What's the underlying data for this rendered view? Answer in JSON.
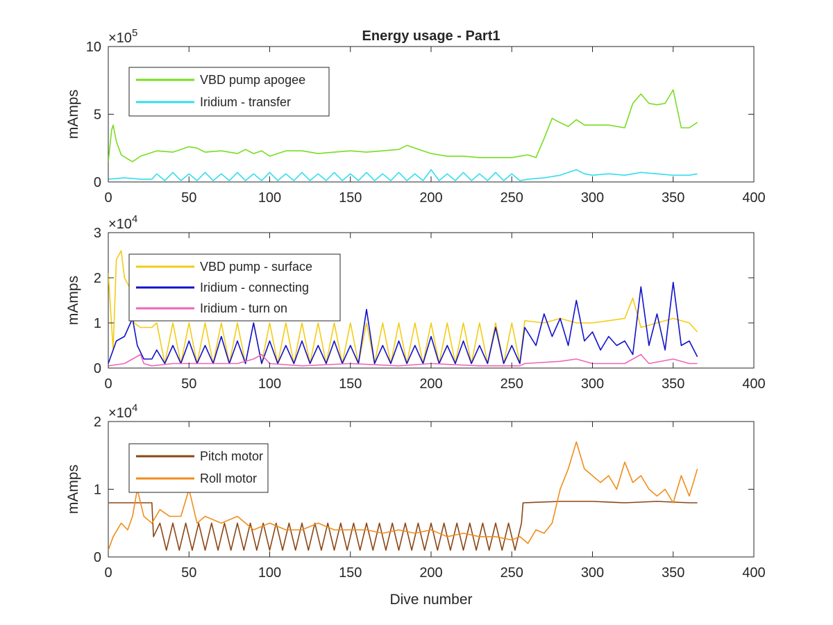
{
  "figure": {
    "title": "Energy usage - Part1",
    "xlabel": "Dive number"
  },
  "chart_data": [
    {
      "type": "line",
      "title": "Energy usage - Part1",
      "xlabel": "",
      "ylabel": "mAmps",
      "exponent_label": "×10",
      "exponent_power": "5",
      "xlim": [
        0,
        400
      ],
      "ylim": [
        0,
        10
      ],
      "x_ticks": [
        "0",
        "50",
        "100",
        "150",
        "200",
        "250",
        "300",
        "350",
        "400"
      ],
      "y_ticks": [
        "0",
        "5",
        "10"
      ],
      "legend_position": "top-left",
      "series": [
        {
          "name": "VBD pump apogee",
          "color": "#77dd22",
          "x": [
            0,
            2,
            3,
            5,
            8,
            12,
            15,
            20,
            30,
            40,
            50,
            55,
            60,
            70,
            80,
            85,
            90,
            95,
            100,
            110,
            120,
            130,
            140,
            150,
            160,
            170,
            180,
            185,
            190,
            195,
            200,
            210,
            220,
            230,
            240,
            250,
            255,
            260,
            265,
            270,
            275,
            278,
            285,
            290,
            295,
            300,
            310,
            320,
            325,
            330,
            335,
            340,
            345,
            350,
            355,
            360,
            365
          ],
          "y": [
            1.5,
            3.8,
            4.2,
            3.0,
            2.0,
            1.7,
            1.5,
            1.9,
            2.3,
            2.2,
            2.6,
            2.5,
            2.2,
            2.3,
            2.1,
            2.4,
            2.1,
            2.3,
            1.9,
            2.3,
            2.3,
            2.1,
            2.2,
            2.3,
            2.2,
            2.3,
            2.4,
            2.7,
            2.5,
            2.3,
            2.1,
            1.9,
            1.9,
            1.8,
            1.8,
            1.8,
            1.9,
            2.0,
            1.8,
            3.2,
            4.7,
            4.5,
            4.1,
            4.6,
            4.2,
            4.2,
            4.2,
            4.0,
            5.8,
            6.5,
            5.8,
            5.7,
            5.8,
            6.8,
            4.0,
            4.0,
            4.4
          ]
        },
        {
          "name": "Iridium - transfer",
          "color": "#33ddee",
          "x": [
            0,
            10,
            20,
            27,
            30,
            35,
            40,
            45,
            50,
            55,
            60,
            65,
            70,
            75,
            80,
            85,
            90,
            95,
            100,
            105,
            110,
            115,
            120,
            125,
            130,
            135,
            140,
            145,
            150,
            155,
            160,
            165,
            170,
            175,
            180,
            185,
            190,
            195,
            200,
            205,
            210,
            215,
            220,
            225,
            230,
            235,
            240,
            245,
            250,
            255,
            260,
            270,
            280,
            285,
            290,
            295,
            300,
            310,
            320,
            330,
            340,
            350,
            360,
            365
          ],
          "y": [
            0.2,
            0.3,
            0.2,
            0.2,
            0.6,
            0.1,
            0.7,
            0.1,
            0.6,
            0.1,
            0.7,
            0.1,
            0.6,
            0.1,
            0.7,
            0.1,
            0.6,
            0.1,
            0.7,
            0.1,
            0.6,
            0.1,
            0.7,
            0.1,
            0.6,
            0.1,
            0.7,
            0.1,
            0.6,
            0.1,
            0.7,
            0.1,
            0.6,
            0.1,
            0.7,
            0.1,
            0.6,
            0.1,
            0.9,
            0.1,
            0.6,
            0.1,
            0.7,
            0.1,
            0.6,
            0.1,
            0.7,
            0.1,
            0.6,
            0.1,
            0.2,
            0.3,
            0.5,
            0.7,
            0.9,
            0.6,
            0.5,
            0.6,
            0.5,
            0.7,
            0.6,
            0.5,
            0.5,
            0.6
          ]
        }
      ]
    },
    {
      "type": "line",
      "title": "",
      "xlabel": "",
      "ylabel": "mAmps",
      "exponent_label": "×10",
      "exponent_power": "4",
      "xlim": [
        0,
        400
      ],
      "ylim": [
        0,
        3
      ],
      "x_ticks": [
        "0",
        "50",
        "100",
        "150",
        "200",
        "250",
        "300",
        "350",
        "400"
      ],
      "y_ticks": [
        "0",
        "1",
        "2",
        "3"
      ],
      "legend_position": "top-left",
      "series": [
        {
          "name": "VBD pump - surface",
          "color": "#f2cc15",
          "x": [
            0,
            3,
            5,
            8,
            10,
            13,
            16,
            20,
            27,
            30,
            35,
            40,
            45,
            50,
            55,
            60,
            65,
            70,
            75,
            80,
            85,
            90,
            95,
            100,
            105,
            110,
            115,
            120,
            125,
            130,
            135,
            140,
            145,
            150,
            155,
            160,
            165,
            170,
            175,
            180,
            185,
            190,
            195,
            200,
            205,
            210,
            215,
            220,
            225,
            230,
            235,
            240,
            245,
            250,
            255,
            258,
            270,
            280,
            290,
            300,
            310,
            320,
            325,
            330,
            340,
            350,
            360,
            365
          ],
          "y": [
            2.1,
            0.4,
            2.4,
            2.6,
            2.0,
            1.8,
            1.0,
            0.9,
            0.9,
            1.0,
            0.1,
            1.0,
            0.1,
            1.0,
            0.1,
            1.0,
            0.1,
            1.0,
            0.1,
            1.0,
            0.1,
            1.0,
            0.1,
            1.0,
            0.1,
            1.0,
            0.1,
            1.0,
            0.1,
            1.0,
            0.1,
            1.0,
            0.1,
            1.0,
            0.1,
            1.0,
            0.1,
            1.0,
            0.1,
            1.0,
            0.1,
            1.0,
            0.1,
            1.0,
            0.1,
            1.0,
            0.1,
            1.0,
            0.1,
            1.0,
            0.1,
            1.0,
            0.1,
            1.0,
            0.1,
            1.05,
            1.0,
            1.1,
            1.0,
            1.0,
            1.05,
            1.1,
            1.55,
            0.9,
            1.0,
            1.1,
            1.0,
            0.8
          ]
        },
        {
          "name": "Iridium - connecting",
          "color": "#1111cc",
          "x": [
            0,
            5,
            10,
            15,
            18,
            22,
            27,
            30,
            35,
            40,
            45,
            50,
            55,
            60,
            65,
            70,
            75,
            80,
            85,
            90,
            95,
            100,
            105,
            110,
            115,
            120,
            125,
            130,
            135,
            140,
            145,
            150,
            155,
            160,
            165,
            170,
            175,
            180,
            185,
            190,
            195,
            200,
            205,
            210,
            215,
            220,
            225,
            230,
            235,
            240,
            245,
            250,
            255,
            258,
            265,
            270,
            275,
            280,
            285,
            290,
            295,
            300,
            305,
            310,
            315,
            320,
            325,
            330,
            335,
            340,
            345,
            350,
            355,
            360,
            365
          ],
          "y": [
            0.1,
            0.6,
            0.7,
            1.1,
            0.5,
            0.2,
            0.2,
            0.4,
            0.1,
            0.5,
            0.1,
            0.6,
            0.1,
            0.5,
            0.1,
            0.7,
            0.1,
            0.6,
            0.1,
            1.0,
            0.1,
            0.6,
            0.1,
            0.5,
            0.1,
            0.6,
            0.1,
            0.5,
            0.1,
            0.6,
            0.1,
            0.5,
            0.1,
            1.3,
            0.1,
            0.5,
            0.1,
            0.6,
            0.1,
            0.5,
            0.1,
            0.7,
            0.1,
            0.5,
            0.1,
            0.6,
            0.1,
            0.5,
            0.1,
            0.9,
            0.1,
            0.5,
            0.1,
            0.9,
            0.5,
            1.2,
            0.7,
            1.1,
            0.5,
            1.5,
            0.6,
            0.8,
            0.4,
            0.7,
            0.5,
            0.6,
            0.3,
            1.8,
            0.5,
            1.2,
            0.4,
            1.9,
            0.5,
            0.6,
            0.25
          ]
        },
        {
          "name": "Iridium - turn on",
          "color": "#ee66bb",
          "x": [
            0,
            10,
            20,
            22,
            27,
            40,
            60,
            80,
            90,
            95,
            100,
            120,
            150,
            180,
            200,
            230,
            255,
            258,
            280,
            290,
            300,
            320,
            330,
            335,
            350,
            360,
            365
          ],
          "y": [
            0.05,
            0.1,
            0.3,
            0.1,
            0.05,
            0.1,
            0.1,
            0.1,
            0.2,
            0.3,
            0.1,
            0.05,
            0.1,
            0.05,
            0.1,
            0.05,
            0.05,
            0.1,
            0.15,
            0.2,
            0.1,
            0.1,
            0.3,
            0.1,
            0.2,
            0.1,
            0.1
          ]
        }
      ]
    },
    {
      "type": "line",
      "title": "",
      "xlabel": "Dive number",
      "ylabel": "mAmps",
      "exponent_label": "×10",
      "exponent_power": "4",
      "xlim": [
        0,
        400
      ],
      "ylim": [
        0,
        2
      ],
      "x_ticks": [
        "0",
        "50",
        "100",
        "150",
        "200",
        "250",
        "300",
        "350",
        "400"
      ],
      "y_ticks": [
        "0",
        "1",
        "2"
      ],
      "legend_position": "top-left",
      "series": [
        {
          "name": "Pitch motor",
          "color": "#8b4513",
          "x": [
            0,
            27,
            28,
            32,
            36,
            40,
            44,
            48,
            52,
            56,
            60,
            64,
            68,
            72,
            76,
            80,
            84,
            88,
            92,
            96,
            100,
            104,
            108,
            112,
            116,
            120,
            124,
            128,
            132,
            136,
            140,
            144,
            148,
            152,
            156,
            160,
            164,
            168,
            172,
            176,
            180,
            184,
            188,
            192,
            196,
            200,
            204,
            208,
            212,
            216,
            220,
            224,
            228,
            232,
            236,
            240,
            244,
            248,
            252,
            256,
            257,
            280,
            300,
            320,
            340,
            360,
            365
          ],
          "y": [
            0.8,
            0.8,
            0.3,
            0.5,
            0.1,
            0.5,
            0.1,
            0.5,
            0.1,
            0.5,
            0.1,
            0.5,
            0.1,
            0.5,
            0.1,
            0.5,
            0.1,
            0.5,
            0.1,
            0.5,
            0.1,
            0.5,
            0.1,
            0.5,
            0.1,
            0.5,
            0.1,
            0.5,
            0.1,
            0.5,
            0.1,
            0.5,
            0.1,
            0.5,
            0.1,
            0.5,
            0.1,
            0.5,
            0.1,
            0.5,
            0.1,
            0.5,
            0.1,
            0.5,
            0.1,
            0.5,
            0.1,
            0.5,
            0.1,
            0.5,
            0.1,
            0.5,
            0.1,
            0.5,
            0.1,
            0.5,
            0.1,
            0.5,
            0.1,
            0.5,
            0.8,
            0.82,
            0.82,
            0.8,
            0.82,
            0.8,
            0.8
          ]
        },
        {
          "name": "Roll motor",
          "color": "#f08c1a",
          "x": [
            0,
            3,
            8,
            12,
            15,
            18,
            22,
            27,
            32,
            38,
            45,
            50,
            55,
            60,
            70,
            80,
            90,
            100,
            110,
            120,
            130,
            140,
            150,
            160,
            170,
            180,
            190,
            200,
            210,
            220,
            230,
            240,
            250,
            255,
            260,
            265,
            270,
            275,
            280,
            285,
            290,
            295,
            300,
            305,
            310,
            315,
            320,
            325,
            330,
            335,
            340,
            345,
            350,
            355,
            360,
            365
          ],
          "y": [
            0.1,
            0.3,
            0.5,
            0.4,
            0.6,
            1.0,
            0.6,
            0.5,
            0.7,
            0.6,
            0.6,
            1.0,
            0.5,
            0.6,
            0.5,
            0.6,
            0.4,
            0.5,
            0.4,
            0.4,
            0.5,
            0.4,
            0.4,
            0.4,
            0.35,
            0.4,
            0.35,
            0.4,
            0.3,
            0.35,
            0.3,
            0.3,
            0.25,
            0.3,
            0.2,
            0.4,
            0.35,
            0.5,
            1.0,
            1.3,
            1.7,
            1.3,
            1.2,
            1.1,
            1.2,
            1.0,
            1.4,
            1.1,
            1.2,
            1.0,
            0.9,
            1.0,
            0.8,
            1.2,
            0.9,
            1.3
          ]
        }
      ]
    }
  ]
}
